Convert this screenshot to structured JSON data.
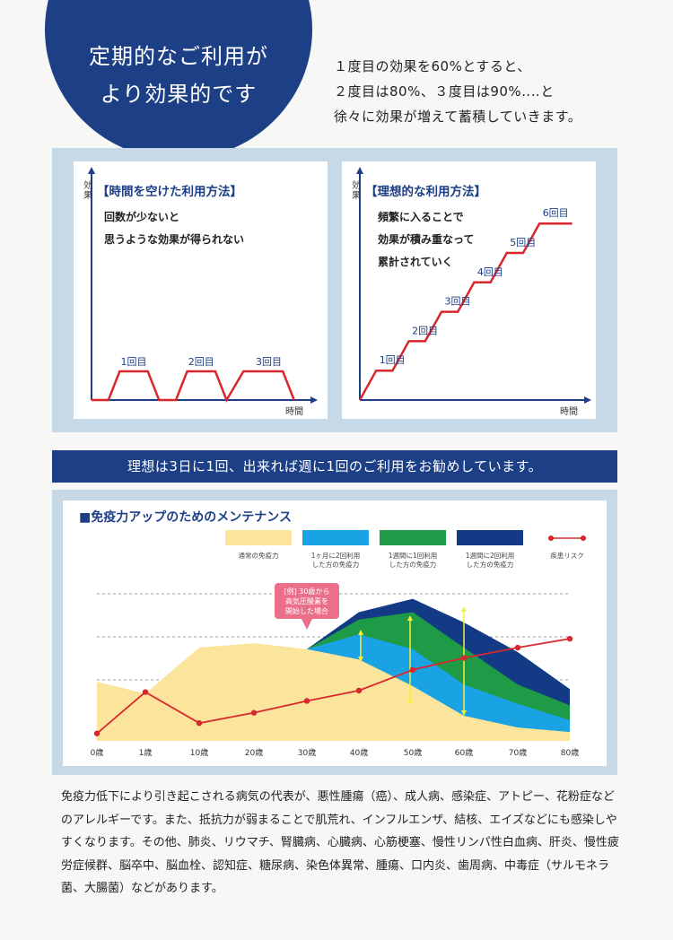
{
  "hero": {
    "title_line1": "定期的なご利用が",
    "title_line2": "より効果的です"
  },
  "intro": {
    "line1": "１度目の効果を60%とすると、",
    "line2": "２度目は80%、３度目は90%‥‥と",
    "line3": "徐々に効果が増えて蓄積していきます。"
  },
  "colors": {
    "navy": "#1d3f86",
    "panel": "#c7d9e7",
    "red": "#d9272e",
    "yellow": "#fbe59c",
    "light_blue": "#1aa3e4",
    "green": "#1f9b47",
    "dark_blue": "#123a85",
    "callout": "#ec6f8a"
  },
  "banner": "理想は3日に1回、出来れば週に1回のご利用をお勧めしています。",
  "body_text": "免疫力低下により引き起こされる病気の代表が、悪性腫瘍（癌）、成人病、感染症、アトピー、花粉症などのアレルギーです。また、抵抗力が弱まることで肌荒れ、インフルエンザ、結核、エイズなどにも感染しやすくなります。その他、肺炎、リウマチ、腎臓病、心臓病、心筋梗塞、慢性リンパ性白血病、肝炎、慢性疲労症候群、脳卒中、脳血栓、認知症、糖尿病、染色体異常、腫瘍、口内炎、歯周病、中毒症（サルモネラ菌、大腸菌）などがあります。",
  "chart_data": [
    {
      "type": "line",
      "title": "【時間を空けた利用方法】",
      "description": [
        "回数が少ないと",
        "思うような効果が得られない"
      ],
      "ylabel": "効果",
      "xlabel": "時間",
      "annotations": [
        "1回目",
        "2回目",
        "3回目"
      ],
      "x": [
        0,
        0.6,
        1.0,
        2.0,
        2.4,
        3.0,
        3.4,
        4.4,
        4.8,
        5.4,
        5.8,
        6.8,
        7.2
      ],
      "y": [
        0,
        0,
        1,
        1,
        0,
        0,
        1,
        1,
        0,
        1,
        1,
        1,
        0
      ],
      "line_color": "#d9272e"
    },
    {
      "type": "line",
      "title": "【理想的な利用方法】",
      "description": [
        "頻繁に入ることで",
        "効果が積み重なって",
        "累計されていく"
      ],
      "ylabel": "効果",
      "xlabel": "時間",
      "annotations": [
        "1回目",
        "2回目",
        "3回目",
        "4回目",
        "5回目",
        "6回目"
      ],
      "x": [
        0,
        1,
        2,
        3,
        4,
        5,
        6,
        7,
        8,
        9,
        10,
        11,
        12,
        13
      ],
      "y": [
        0,
        1,
        1,
        2,
        2,
        3,
        3,
        4,
        4,
        5,
        5,
        6,
        6,
        6
      ],
      "line_color": "#d9272e"
    },
    {
      "type": "area",
      "title": "■免疫力アップのためのメンテナンス",
      "categories": [
        "0歳",
        "1歳",
        "10歳",
        "20歳",
        "30歳",
        "40歳",
        "50歳",
        "60歳",
        "70歳",
        "80歳"
      ],
      "legend": [
        {
          "label_line1": "通常の免疫力",
          "label_line2": "",
          "color": "#fbe59c"
        },
        {
          "label_line1": "1ヶ月に2回利用",
          "label_line2": "した方の免疫力",
          "color": "#1aa3e4"
        },
        {
          "label_line1": "1週間に1回利用",
          "label_line2": "した方の免疫力",
          "color": "#1f9b47"
        },
        {
          "label_line1": "1週間に2回利用",
          "label_line2": "した方の免疫力",
          "color": "#123a85"
        },
        {
          "label_line1": "疾患リスク",
          "label_line2": "",
          "color": "#d9272e"
        }
      ],
      "annotation_lines": [
        "[例] 30歳から",
        "高気圧酸素を",
        "開始した場合"
      ],
      "ylim": [
        0,
        100
      ],
      "series": [
        {
          "name": "通常の免疫力",
          "values": [
            40,
            32,
            63,
            66,
            62,
            55,
            37,
            17,
            9,
            6
          ]
        },
        {
          "name": "1ヶ月に2回利用した方の免疫力",
          "values": [
            null,
            null,
            null,
            null,
            62,
            72,
            62,
            38,
            25,
            14
          ]
        },
        {
          "name": "1週間に1回利用した方の免疫力",
          "values": [
            null,
            null,
            null,
            null,
            62,
            82,
            87,
            63,
            38,
            24
          ]
        },
        {
          "name": "1週間に2回利用した方の免疫力",
          "values": [
            null,
            null,
            null,
            null,
            62,
            87,
            96,
            80,
            60,
            35
          ]
        },
        {
          "name": "疾患リスク",
          "values": [
            5,
            33,
            12,
            19,
            27,
            34,
            48,
            56,
            63,
            69
          ]
        }
      ],
      "grid": true
    }
  ]
}
